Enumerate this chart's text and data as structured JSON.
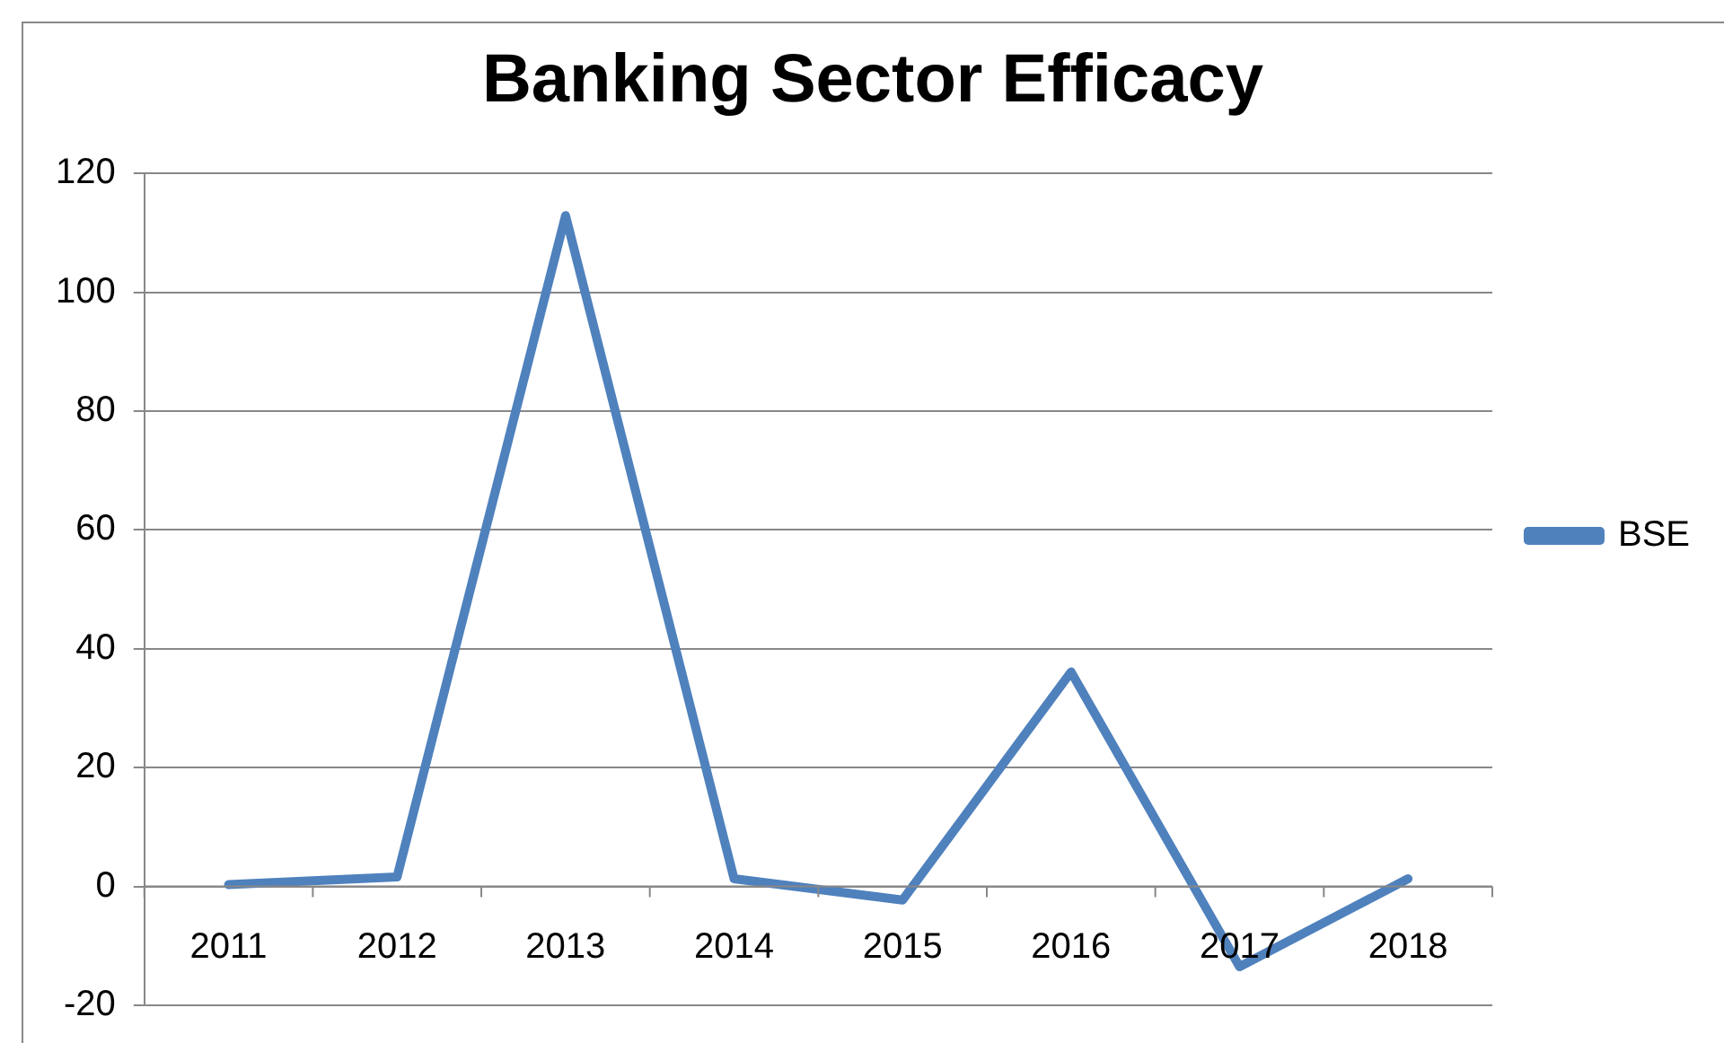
{
  "chart_data": {
    "type": "line",
    "title": "Banking Sector Efficacy",
    "categories": [
      "2011",
      "2012",
      "2013",
      "2014",
      "2015",
      "2016",
      "2017",
      "2018"
    ],
    "series": [
      {
        "name": "BSE",
        "color": "#4f81bd",
        "values": [
          0.3,
          1.6,
          112.9,
          1.3,
          -2.3,
          36.1,
          -13.5,
          1.3
        ]
      }
    ],
    "ylim": [
      -20,
      120
    ],
    "yticks": [
      -20,
      0,
      20,
      40,
      60,
      80,
      100,
      120
    ],
    "grid": "y",
    "legend": "right",
    "marker": "none",
    "line_style": "solid"
  }
}
